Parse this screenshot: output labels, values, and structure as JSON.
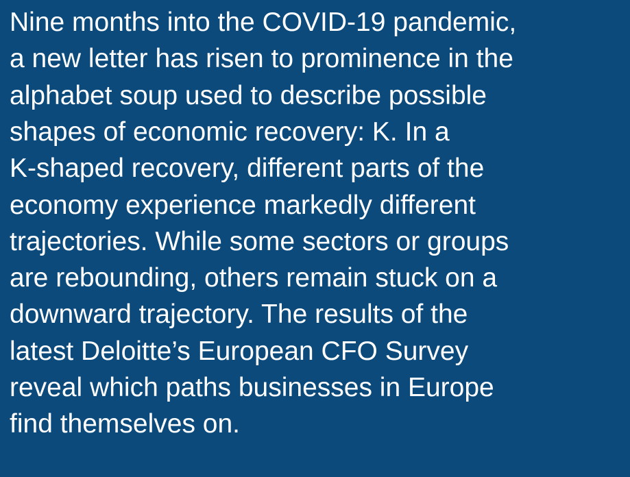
{
  "paragraph": {
    "lines": [
      "Nine months into the COVID-19 pandemic,",
      "a new letter has risen to prominence in the",
      "alphabet soup used to describe possible",
      "shapes of economic recovery: K. In a",
      "K-shaped recovery, different parts of the",
      "economy experience markedly different",
      "trajectories. While some sectors or groups",
      "are rebounding, others remain stuck on a",
      "downward trajectory. The results of the",
      "latest Deloitte’s European CFO Survey",
      "reveal which paths businesses in Europe",
      "find themselves on."
    ]
  }
}
